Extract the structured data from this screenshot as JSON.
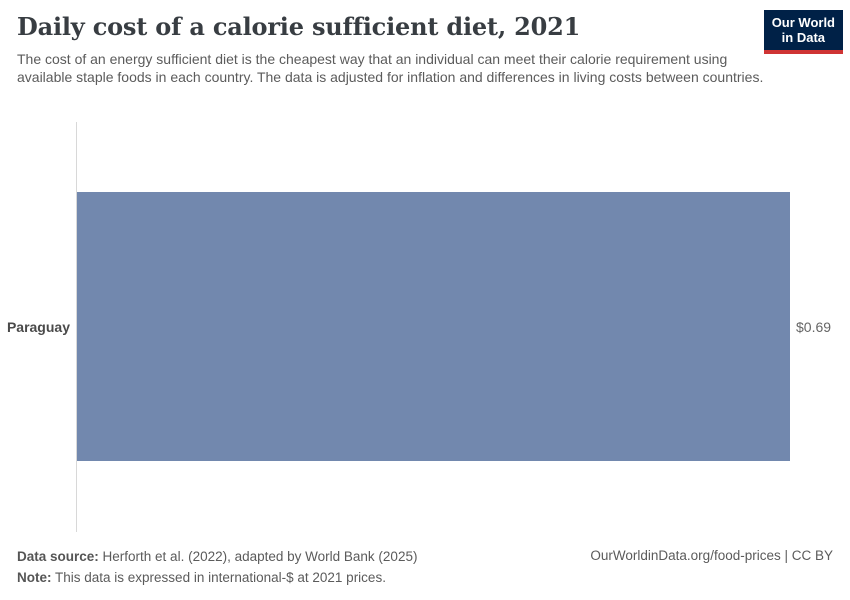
{
  "header": {
    "title": "Daily cost of a calorie sufficient diet, 2021",
    "subtitle": "The cost of an energy sufficient diet is the cheapest way that an individual can meet their calorie requirement using available staple foods in each country. The data is adjusted for inflation and differences in living costs between countries.",
    "logo": {
      "line1": "Our World",
      "line2": "in Data",
      "bg_color": "#002147",
      "accent_color": "#cf3434"
    }
  },
  "chart_data": {
    "type": "bar",
    "orientation": "horizontal",
    "title": "Daily cost of a calorie sufficient diet, 2021",
    "categories": [
      "Paraguay"
    ],
    "values": [
      0.69
    ],
    "value_labels": [
      "$0.69"
    ],
    "unit": "international-$",
    "xlabel": "",
    "ylabel": "",
    "xlim": [
      0,
      0.69
    ],
    "bar_color": "#7288ae",
    "grid": false,
    "legend": false
  },
  "footer": {
    "data_source_label": "Data source:",
    "data_source_text": " Herforth et al. (2022), adapted by World Bank (2025)",
    "note_label": "Note:",
    "note_text": " This data is expressed in international-$ at 2021 prices.",
    "attribution": "OurWorldinData.org/food-prices | CC BY"
  }
}
